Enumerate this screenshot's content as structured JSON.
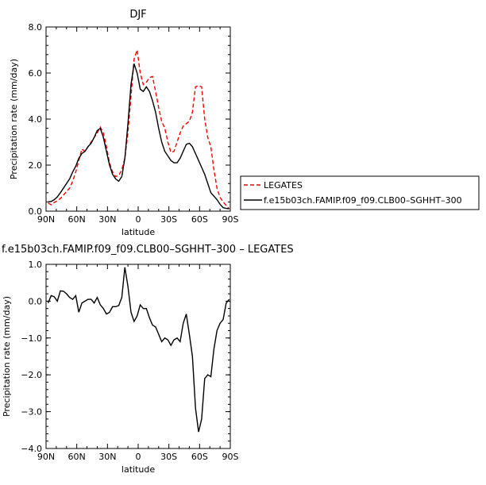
{
  "chart_data": [
    {
      "type": "line",
      "title": "DJF",
      "xlabel": "latitude",
      "ylabel": "Precipitation rate (mm/day)",
      "xlim": [
        90,
        -90
      ],
      "ylim": [
        0,
        8
      ],
      "xticks": [
        90,
        60,
        30,
        0,
        -30,
        -60,
        -90
      ],
      "xtick_labels": [
        "90N",
        "60N",
        "30N",
        "0",
        "30S",
        "60S",
        "90S"
      ],
      "yticks": [
        0,
        2,
        4,
        6,
        8
      ],
      "ytick_labels": [
        "0.0",
        "2.0",
        "4.0",
        "6.0",
        "8.0"
      ],
      "legend": {
        "position": "right",
        "entries": [
          "LEGATES",
          "f.e15b03ch.FAMIP.f09_f09.CLB00–SGHHT–300"
        ]
      },
      "series": [
        {
          "name": "LEGATES",
          "color": "#ff0000",
          "dash": "dashed",
          "x": [
            88,
            85,
            82,
            79,
            76,
            73,
            70,
            67,
            64,
            61,
            58,
            55,
            52,
            49,
            46,
            43,
            40,
            37,
            34,
            31,
            28,
            25,
            22,
            19,
            16,
            13,
            10,
            7,
            4,
            1,
            -2,
            -5,
            -8,
            -11,
            -14,
            -17,
            -20,
            -23,
            -26,
            -29,
            -32,
            -35,
            -38,
            -41,
            -44,
            -47,
            -50,
            -53,
            -56,
            -59,
            -62,
            -65,
            -68,
            -71,
            -74,
            -77,
            -80,
            -83,
            -86,
            -89
          ],
          "y": [
            0.35,
            0.28,
            0.38,
            0.45,
            0.55,
            0.7,
            0.85,
            1.0,
            1.3,
            1.7,
            2.2,
            2.7,
            2.6,
            2.8,
            3.0,
            3.2,
            3.4,
            3.65,
            3.4,
            2.8,
            2.1,
            1.7,
            1.5,
            1.55,
            1.8,
            2.3,
            3.4,
            5.0,
            6.6,
            7.0,
            6.0,
            5.5,
            5.6,
            5.8,
            5.85,
            5.2,
            4.5,
            3.9,
            3.6,
            3.0,
            2.55,
            2.6,
            3.0,
            3.4,
            3.7,
            3.8,
            3.9,
            4.3,
            5.4,
            5.45,
            5.4,
            4.0,
            3.2,
            2.8,
            1.8,
            1.0,
            0.6,
            0.4,
            0.25,
            0.1
          ]
        },
        {
          "name": "f.e15b03ch.FAMIP.f09_f09.CLB00–SGHHT–300",
          "color": "#000000",
          "dash": "solid",
          "x": [
            88,
            85,
            82,
            79,
            76,
            73,
            70,
            67,
            64,
            61,
            58,
            55,
            52,
            49,
            46,
            43,
            40,
            37,
            34,
            31,
            28,
            25,
            22,
            19,
            16,
            13,
            10,
            7,
            4,
            1,
            -2,
            -5,
            -8,
            -11,
            -14,
            -17,
            -20,
            -23,
            -26,
            -29,
            -32,
            -35,
            -38,
            -41,
            -44,
            -47,
            -50,
            -53,
            -56,
            -59,
            -62,
            -65,
            -68,
            -71,
            -74,
            -77,
            -80,
            -83,
            -86,
            -89
          ],
          "y": [
            0.4,
            0.42,
            0.5,
            0.62,
            0.8,
            1.0,
            1.2,
            1.4,
            1.7,
            1.95,
            2.3,
            2.5,
            2.6,
            2.8,
            2.95,
            3.2,
            3.5,
            3.6,
            3.2,
            2.6,
            2.0,
            1.6,
            1.4,
            1.3,
            1.5,
            2.3,
            3.8,
            5.5,
            6.4,
            6.0,
            5.3,
            5.2,
            5.4,
            5.2,
            4.8,
            4.3,
            3.6,
            3.0,
            2.6,
            2.4,
            2.2,
            2.1,
            2.1,
            2.3,
            2.6,
            2.9,
            2.95,
            2.8,
            2.5,
            2.2,
            1.9,
            1.6,
            1.2,
            0.8,
            0.65,
            0.5,
            0.3,
            0.15,
            0.12,
            0.1
          ]
        }
      ]
    },
    {
      "type": "line",
      "title": "f.e15b03ch.FAMIP.f09_f09.CLB00–SGHHT–300  –  LEGATES",
      "xlabel": "latitude",
      "ylabel": "Precipitation rate (mm/day)",
      "xlim": [
        90,
        -90
      ],
      "ylim": [
        -4,
        1
      ],
      "xticks": [
        90,
        60,
        30,
        0,
        -30,
        -60,
        -90
      ],
      "xtick_labels": [
        "90N",
        "60N",
        "30N",
        "0",
        "30S",
        "60S",
        "90S"
      ],
      "yticks": [
        -4,
        -3,
        -2,
        -1,
        0,
        1
      ],
      "ytick_labels": [
        "−4.0",
        "−3.0",
        "−2.0",
        "−1.0",
        "0.0",
        "1.0"
      ],
      "series": [
        {
          "name": "",
          "color": "#000000",
          "dash": "solid",
          "x": [
            88,
            85,
            82,
            79,
            76,
            73,
            70,
            67,
            64,
            61,
            58,
            55,
            52,
            49,
            46,
            43,
            40,
            37,
            34,
            31,
            28,
            25,
            22,
            19,
            16,
            13,
            10,
            7,
            4,
            1,
            -2,
            -5,
            -8,
            -11,
            -14,
            -17,
            -20,
            -23,
            -26,
            -29,
            -32,
            -35,
            -38,
            -41,
            -44,
            -47,
            -50,
            -53,
            -56,
            -59,
            -62,
            -65,
            -68,
            -71,
            -74,
            -77,
            -80,
            -83,
            -86,
            -89
          ],
          "y": [
            -0.05,
            0.15,
            0.12,
            0.0,
            0.28,
            0.27,
            0.2,
            0.1,
            0.05,
            0.15,
            -0.3,
            -0.05,
            0.0,
            0.05,
            0.05,
            -0.05,
            0.1,
            -0.1,
            -0.2,
            -0.35,
            -0.3,
            -0.15,
            -0.15,
            -0.12,
            0.1,
            0.92,
            0.4,
            -0.3,
            -0.55,
            -0.4,
            -0.1,
            -0.2,
            -0.2,
            -0.45,
            -0.65,
            -0.7,
            -0.9,
            -1.1,
            -1.0,
            -1.05,
            -1.2,
            -1.05,
            -1.0,
            -1.1,
            -0.6,
            -0.35,
            -0.9,
            -1.5,
            -2.9,
            -3.55,
            -3.2,
            -2.1,
            -2.0,
            -2.05,
            -1.3,
            -0.8,
            -0.6,
            -0.5,
            -0.05,
            0.05
          ]
        }
      ]
    }
  ]
}
